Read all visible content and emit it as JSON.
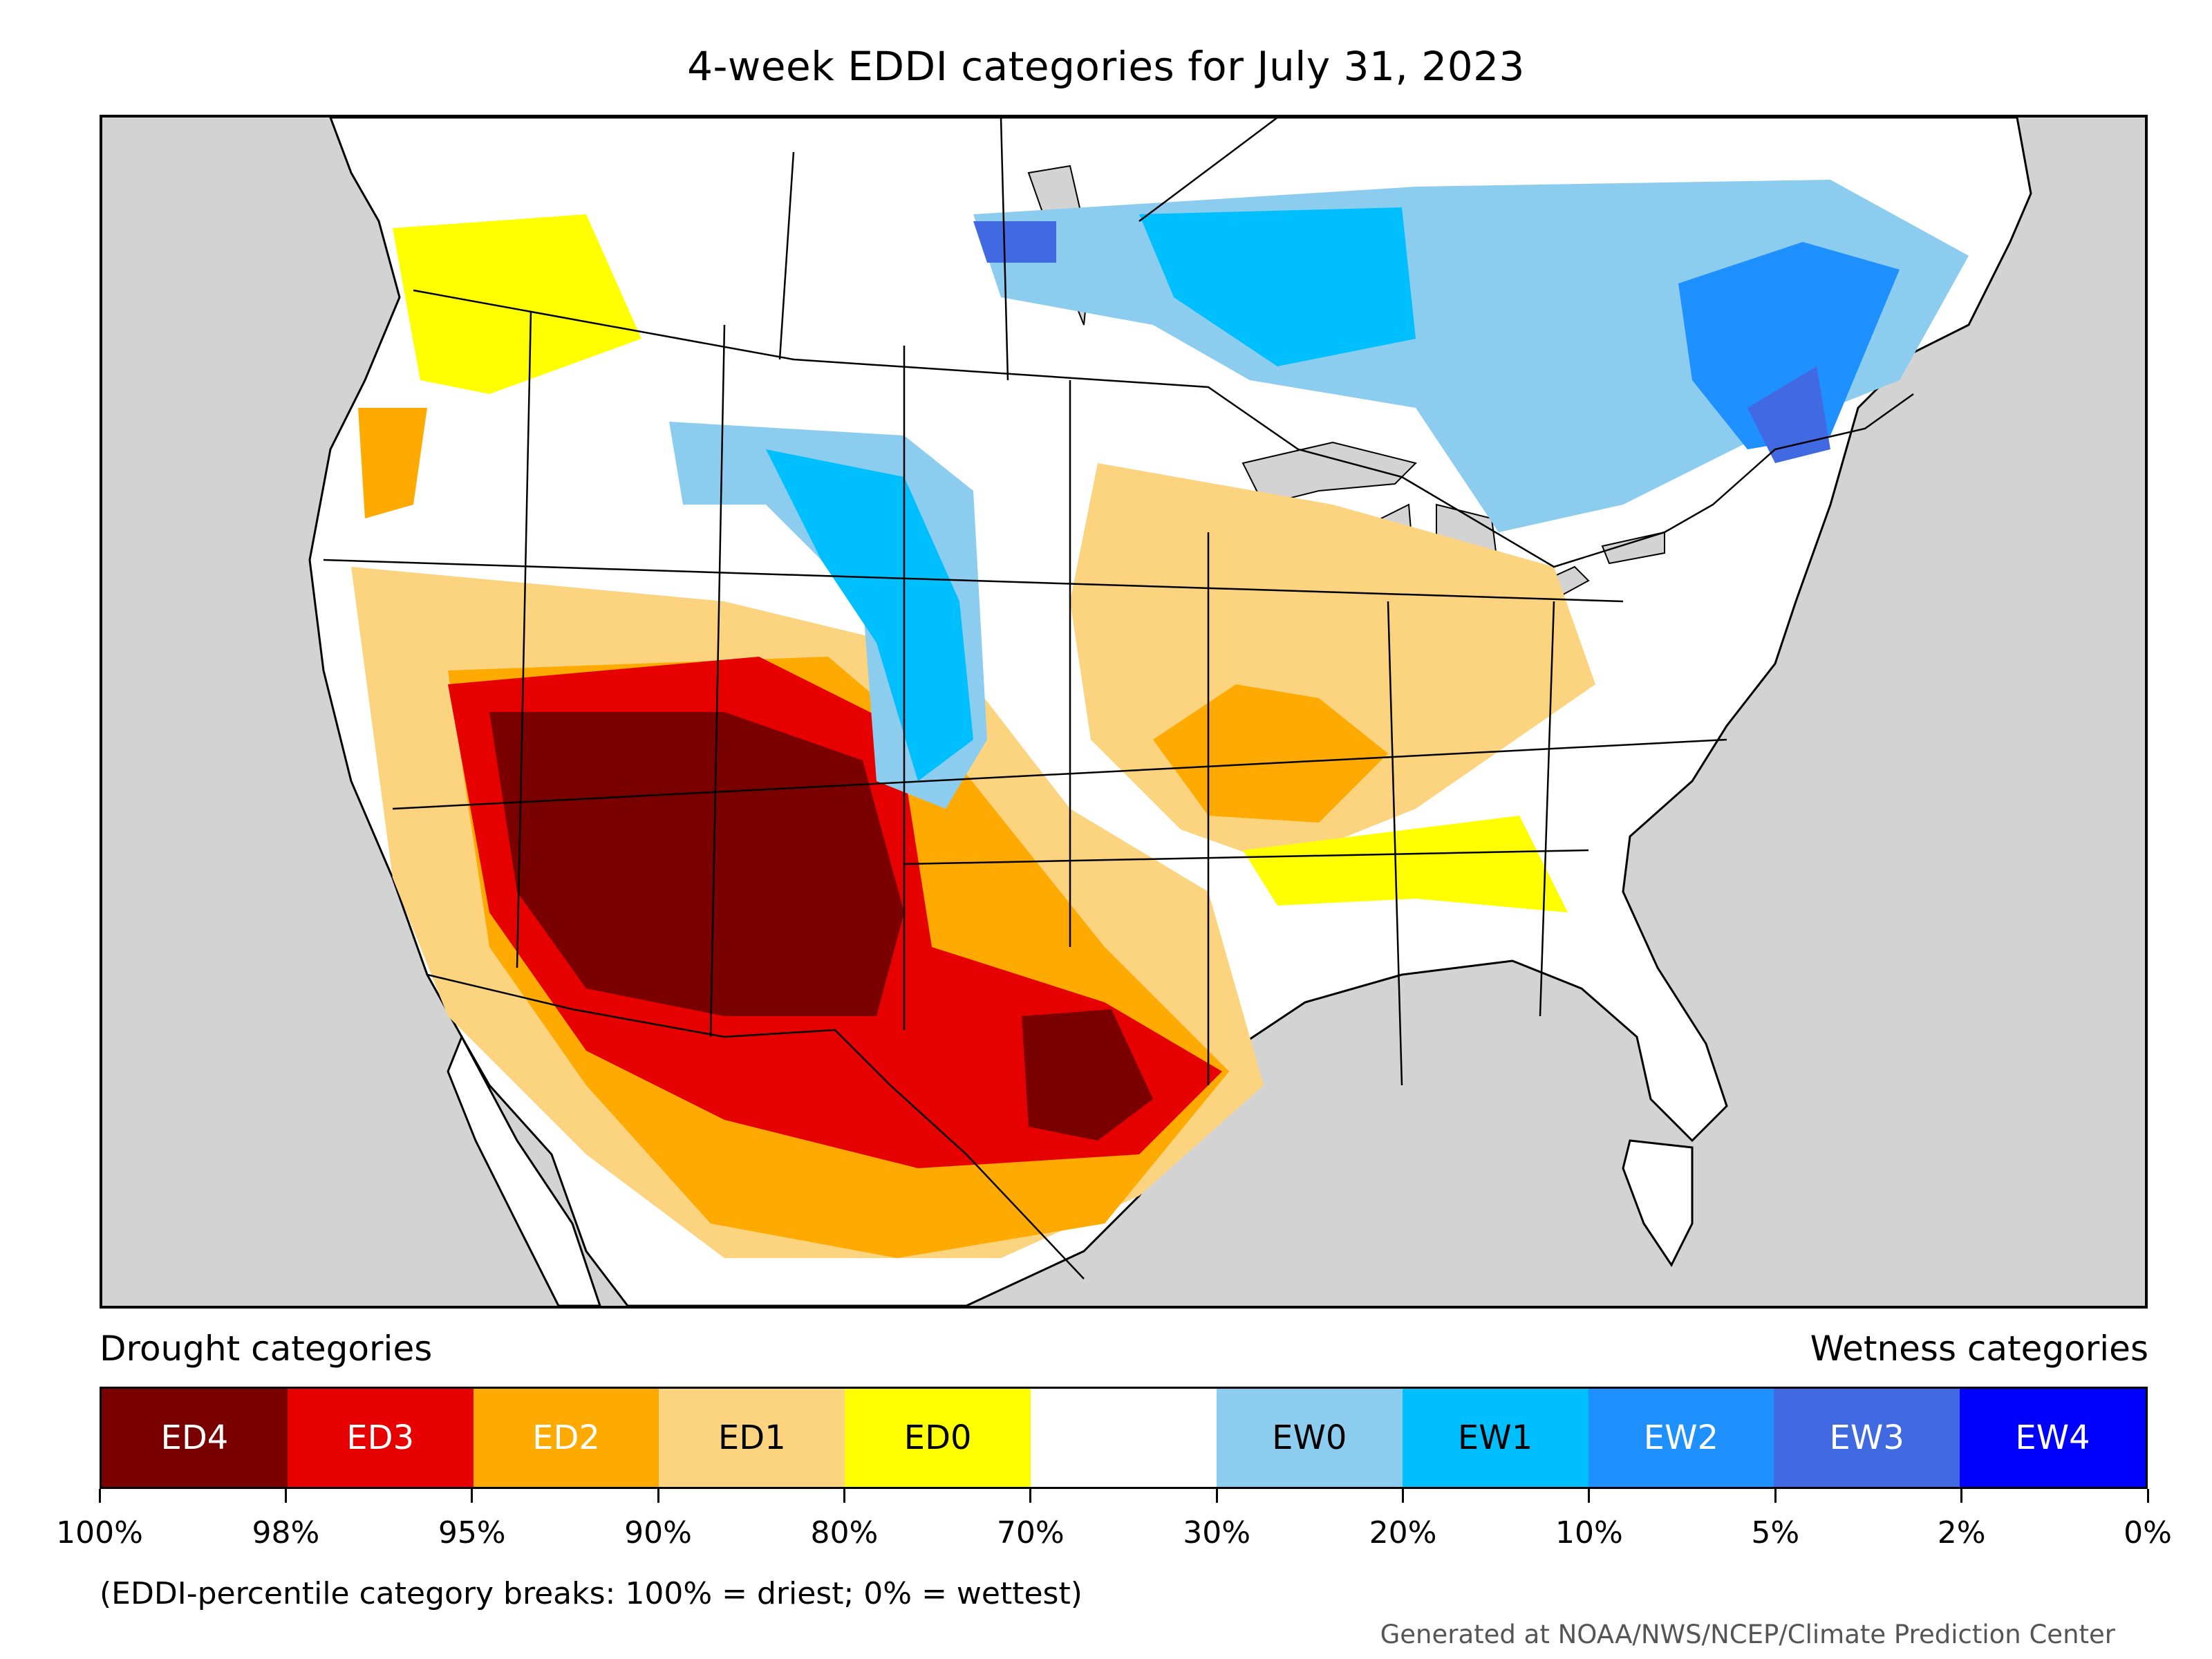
{
  "title": "4-week EDDI categories for July 31, 2023",
  "legend": {
    "drought_heading": "Drought categories",
    "wetness_heading": "Wetness categories",
    "categories": [
      {
        "label": "ED4",
        "color": "#7a0000",
        "text_color": "#ffffff"
      },
      {
        "label": "ED3",
        "color": "#e60000",
        "text_color": "#ffffff"
      },
      {
        "label": "ED2",
        "color": "#ffaa00",
        "text_color": "#ffffff"
      },
      {
        "label": "ED1",
        "color": "#fcd37f",
        "text_color": "#000000"
      },
      {
        "label": "ED0",
        "color": "#ffff00",
        "text_color": "#000000"
      },
      {
        "label": "",
        "color": "#ffffff",
        "text_color": "#000000"
      },
      {
        "label": "EW0",
        "color": "#8ccdef",
        "text_color": "#000000"
      },
      {
        "label": "EW1",
        "color": "#00bfff",
        "text_color": "#000000"
      },
      {
        "label": "EW2",
        "color": "#1e90ff",
        "text_color": "#ffffff"
      },
      {
        "label": "EW3",
        "color": "#4169e1",
        "text_color": "#ffffff"
      },
      {
        "label": "EW4",
        "color": "#0000ff",
        "text_color": "#ffffff"
      }
    ],
    "tick_labels": [
      "100%",
      "98%",
      "95%",
      "90%",
      "80%",
      "70%",
      "30%",
      "20%",
      "10%",
      "5%",
      "2%",
      "0%"
    ]
  },
  "note": "(EDDI-percentile category breaks: 100% = driest; 0% = wettest)",
  "credit": "Generated at NOAA/NWS/NCEP/Climate Prediction Center",
  "colors": {
    "land": "#ffffff",
    "ocean": "#d3d3d3",
    "border": "#000000"
  }
}
